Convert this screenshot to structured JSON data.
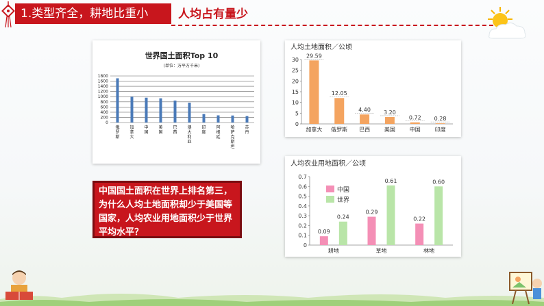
{
  "header": {
    "title": "1.类型齐全，耕地比重小",
    "subtitle": "人均占有量少"
  },
  "question": {
    "lines": [
      "中国国土面积在世界上排名第三，",
      "为什么人均土地面积却少于美国等",
      "国家，人均农业用地面积少于世界",
      "平均水平？"
    ]
  },
  "colors": {
    "accent": "#c8161d",
    "bar_blue": "#4a7ab8",
    "bar_orange": "#f4a460",
    "bar_pink": "#f48fb6",
    "bar_green": "#b9e5a8"
  },
  "chart_data": [
    {
      "type": "bar",
      "title": "世界国土面积Top 10",
      "subtitle": "(单位：万平方千米)",
      "categories": [
        "俄罗斯",
        "加拿大",
        "中国",
        "美国",
        "巴西",
        "澳大利亚",
        "印度",
        "阿根廷",
        "哈萨克斯坦",
        "苏丹"
      ],
      "values": [
        1710,
        998,
        960,
        937,
        851,
        769,
        329,
        278,
        272,
        251
      ],
      "yticks": [
        0,
        200,
        400,
        600,
        800,
        1000,
        1200,
        1400,
        1600,
        1800
      ],
      "ylim": [
        0,
        1800
      ]
    },
    {
      "type": "bar",
      "title": "人均土地面积／公顷",
      "categories": [
        "加拿大",
        "俄罗斯",
        "巴西",
        "美国",
        "中国",
        "印度"
      ],
      "values": [
        29.59,
        12.05,
        4.4,
        3.2,
        0.72,
        0.28
      ],
      "labels": [
        "29.59",
        "12.05",
        "4.40",
        "3.20",
        "0.72",
        "0.28"
      ],
      "yticks": [
        0,
        5,
        10,
        15,
        20,
        25,
        30
      ],
      "ylim": [
        0,
        30
      ]
    },
    {
      "type": "bar",
      "title": "人均农业用地面积／公顷",
      "categories": [
        "耕地",
        "草地",
        "林地"
      ],
      "series": [
        {
          "name": "中国",
          "values": [
            0.09,
            0.29,
            0.22
          ],
          "labels": [
            "0.09",
            "0.29",
            "0.22"
          ]
        },
        {
          "name": "世界",
          "values": [
            0.24,
            0.61,
            0.6
          ],
          "labels": [
            "0.24",
            "0.61",
            "0.60"
          ]
        }
      ],
      "yticks": [
        "0",
        "0.1",
        "0.2",
        "0.3",
        "0.4",
        "0.5",
        "0.6",
        "0.7"
      ],
      "ylim": [
        0,
        0.7
      ],
      "legend": "top-left"
    }
  ]
}
